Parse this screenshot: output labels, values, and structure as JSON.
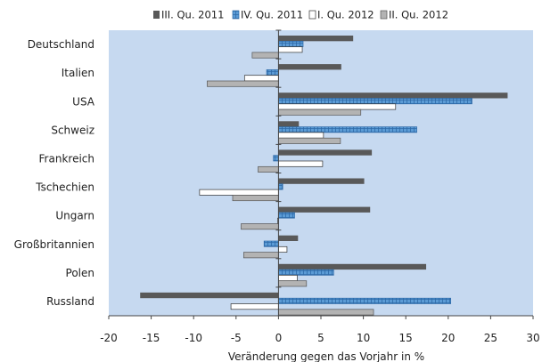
{
  "chart_data": {
    "type": "bar",
    "orientation": "horizontal",
    "title": "",
    "xlabel": "Veränderung gegen das Vorjahr in %",
    "ylabel": "",
    "xlim": [
      -20,
      30
    ],
    "xticks": [
      "-20",
      "-15",
      "-10",
      "-5",
      "0",
      "5",
      "10",
      "15",
      "20",
      "25",
      "30"
    ],
    "grid": false,
    "legend_position": "top",
    "plot_background": "#c6d9f0",
    "categories": [
      "Deutschland",
      "Italien",
      "USA",
      "Schweiz",
      "Frankreich",
      "Tschechien",
      "Ungarn",
      "Großbritannien",
      "Polen",
      "Russland"
    ],
    "series": [
      {
        "name": "III. Qu. 2011",
        "color": "#595959",
        "pattern": "solid",
        "values": [
          8.8,
          7.4,
          27.0,
          2.4,
          11.0,
          10.1,
          10.8,
          2.3,
          17.4,
          -16.3
        ]
      },
      {
        "name": "IV. Qu. 2011",
        "color": "#5b9bd5",
        "pattern": "grid",
        "values": [
          2.9,
          -1.4,
          22.8,
          16.3,
          -0.6,
          0.5,
          1.9,
          -1.7,
          6.5,
          20.3
        ]
      },
      {
        "name": "I. Qu. 2012",
        "color": "#ffffff",
        "pattern": "outline",
        "values": [
          2.8,
          -4.0,
          13.8,
          5.3,
          5.2,
          -9.3,
          -0.1,
          1.0,
          2.2,
          -5.6
        ]
      },
      {
        "name": "II. Qu. 2012",
        "color": "#b3b3b3",
        "pattern": "solid",
        "values": [
          -3.1,
          -8.4,
          9.7,
          7.3,
          -2.4,
          -5.4,
          -4.4,
          -4.1,
          3.3,
          11.2
        ]
      }
    ]
  }
}
